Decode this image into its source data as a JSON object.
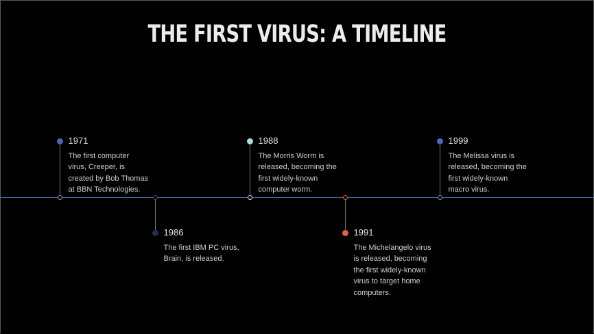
{
  "title": "THE FIRST VIRUS: A TIMELINE",
  "colors": {
    "background": "#000000",
    "axis": "#4a67a8"
  },
  "events": [
    {
      "year": "1971",
      "lines": [
        "The first computer",
        "virus, Creeper, is",
        "created by Bob Thomas",
        "at BBN Technologies."
      ],
      "dot_color": "#4a67b8",
      "node_color": "#8896b4"
    },
    {
      "year": "1986",
      "lines": [
        "The first IBM PC virus,",
        "Brain, is released."
      ],
      "dot_color": "#1f3050",
      "node_color": "#3a4a66"
    },
    {
      "year": "1988",
      "lines": [
        "The Morris Worm is",
        "released, becoming the",
        "first widely-known",
        "computer worm."
      ],
      "dot_color": "#a8dede",
      "node_color": "#c8e8e0"
    },
    {
      "year": "1991",
      "lines": [
        "The Michelangelo virus",
        "is released, becoming",
        "the first widely-known",
        "virus to target home",
        "computers."
      ],
      "dot_color": "#e06048",
      "node_color": "#e06048"
    },
    {
      "year": "1999",
      "lines": [
        "The Melissa virus is",
        "released, becoming the",
        "first widely-known",
        "macro virus."
      ],
      "dot_color": "#4a67b8",
      "node_color": "#7a8cb8"
    }
  ]
}
